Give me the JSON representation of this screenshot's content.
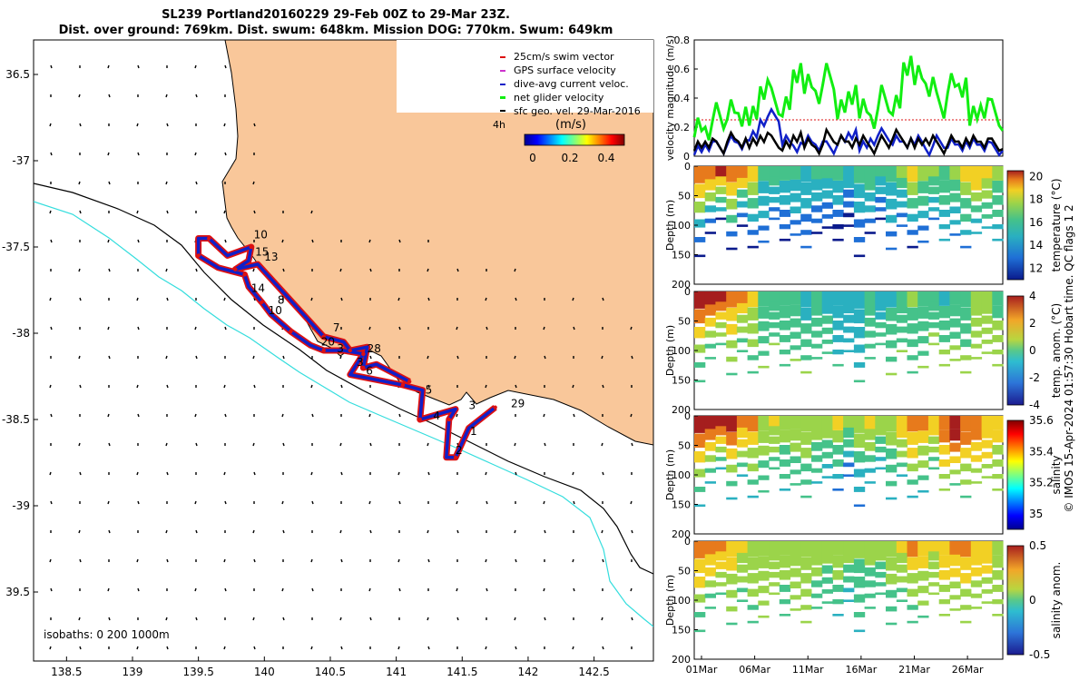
{
  "title_line1": "SL239 Portland20160229 29-Feb 00Z to 29-Mar 23Z.",
  "title_line2": "Dist. over ground: 769km. Dist. swum: 648km. Mission DOG: 770km. Swum: 649km",
  "colors": {
    "land": "#f9c79a",
    "track_red": "#dd1111",
    "track_blue": "#1020c8",
    "isobath_200": "#000000",
    "isobath_1000": "#33dddd",
    "net_velocity": "#11ee11",
    "dive_avg": "#1020c8",
    "sfc_geo": "#000000"
  },
  "map": {
    "legend": [
      {
        "label": "25cm/s swim vector",
        "color": "#dd1111"
      },
      {
        "label": "GPS surface velocity",
        "color": "#cc33cc"
      },
      {
        "label": "dive-avg current veloc.",
        "color": "#1020c8"
      },
      {
        "label": "net glider velocity",
        "color": "#11ee11"
      },
      {
        "label": "sfc geo. vel. 29-Mar-2016",
        "color": "#000000"
      }
    ],
    "colorbar_label": "(m/s)",
    "colorbar_ticks": [
      "0",
      "0.2",
      "0.4"
    ],
    "marker_4h": "4h",
    "isobaths_label": "isobaths: 0   200  1000m",
    "x_ticks": [
      "138.5",
      "139",
      "139.5",
      "140",
      "140.5",
      "141",
      "141.5",
      "142",
      "142.5"
    ],
    "y_ticks": [
      "36.5",
      "-37",
      "-37.5",
      "-38",
      "-38.5",
      "-39",
      "39.5"
    ],
    "day_labels": [
      {
        "t": "10",
        "lon": 139.92,
        "lat": -37.45
      },
      {
        "t": "15",
        "lon": 139.93,
        "lat": -37.55
      },
      {
        "t": "13",
        "lon": 140.0,
        "lat": -37.58
      },
      {
        "t": "14",
        "lon": 139.9,
        "lat": -37.76
      },
      {
        "t": "8",
        "lon": 140.1,
        "lat": -37.83
      },
      {
        "t": "10",
        "lon": 140.03,
        "lat": -37.89
      },
      {
        "t": "7",
        "lon": 140.52,
        "lat": -37.99
      },
      {
        "t": "20",
        "lon": 140.43,
        "lat": -38.07
      },
      {
        "t": "3",
        "lon": 140.55,
        "lat": -38.11
      },
      {
        "t": "28",
        "lon": 140.78,
        "lat": -38.11
      },
      {
        "t": "3",
        "lon": 140.7,
        "lat": -38.19
      },
      {
        "t": "6",
        "lon": 140.77,
        "lat": -38.24
      },
      {
        "t": "5",
        "lon": 141.22,
        "lat": -38.35
      },
      {
        "t": "3",
        "lon": 141.55,
        "lat": -38.44
      },
      {
        "t": "29",
        "lon": 141.87,
        "lat": -38.43
      },
      {
        "t": "4",
        "lon": 141.28,
        "lat": -38.5
      },
      {
        "t": "1",
        "lon": 141.56,
        "lat": -38.59
      },
      {
        "t": "2",
        "lon": 141.45,
        "lat": -38.7
      }
    ]
  },
  "panels": {
    "velocity": {
      "ylabel": "velocity magnitude (m/s)",
      "yticks": [
        "0",
        "0.2",
        "0.4",
        "0.6",
        "0.8"
      ]
    },
    "temperature": {
      "ylabel": "Depth (m)",
      "cblabel": "temperature (°C)",
      "cbticks": [
        "20",
        "18",
        "16",
        "14",
        "12"
      ]
    },
    "temp_anom": {
      "ylabel": "Depth (m)",
      "cblabel": "temp. anom. (°C)",
      "cbticks": [
        "4",
        "2",
        "0",
        "-2",
        "-4"
      ]
    },
    "salinity": {
      "ylabel": "Depth (m)",
      "cblabel": "salinity",
      "cbticks": [
        "35.6",
        "35.4",
        "35.2",
        "35"
      ]
    },
    "sal_anom": {
      "ylabel": "Depth (m)",
      "cblabel": "salinity anom.",
      "cbticks": [
        "0.5",
        "0",
        "-0.5"
      ]
    },
    "depth_ticks": [
      "0",
      "50",
      "100",
      "150",
      "200"
    ],
    "x_ticks": [
      "01Mar",
      "06Mar",
      "11Mar",
      "16Mar",
      "21Mar",
      "26Mar"
    ]
  },
  "side_caption": "© IMOS 15-Apr-2024 01:57:30 Hobart time. QC flags 1  2",
  "chart_data": [
    {
      "type": "scatter",
      "title": "SL239 Portland20160229 29-Feb 00Z to 29-Mar 23Z.",
      "xlabel": "",
      "ylabel": "",
      "xlim": [
        138.25,
        142.95
      ],
      "ylim": [
        -39.9,
        -36.3
      ],
      "track": [
        [
          141.75,
          -38.43
        ],
        [
          141.55,
          -38.55
        ],
        [
          141.45,
          -38.72
        ],
        [
          141.38,
          -38.72
        ],
        [
          141.4,
          -38.5
        ],
        [
          141.45,
          -38.44
        ],
        [
          141.18,
          -38.5
        ],
        [
          141.2,
          -38.33
        ],
        [
          141.05,
          -38.3
        ],
        [
          140.65,
          -38.24
        ],
        [
          140.75,
          -38.12
        ],
        [
          140.6,
          -38.1
        ],
        [
          140.45,
          -38.1
        ],
        [
          140.35,
          -38.07
        ],
        [
          140.2,
          -37.99
        ],
        [
          140.05,
          -37.89
        ],
        [
          139.98,
          -37.82
        ],
        [
          139.88,
          -37.73
        ],
        [
          139.85,
          -37.66
        ],
        [
          139.65,
          -37.62
        ],
        [
          139.5,
          -37.55
        ],
        [
          139.5,
          -37.45
        ],
        [
          139.58,
          -37.45
        ],
        [
          139.72,
          -37.55
        ],
        [
          139.9,
          -37.5
        ],
        [
          139.88,
          -37.58
        ],
        [
          139.78,
          -37.63
        ],
        [
          139.95,
          -37.6
        ],
        [
          140.45,
          -38.02
        ],
        [
          140.6,
          -38.05
        ],
        [
          140.65,
          -38.1
        ],
        [
          140.78,
          -38.08
        ],
        [
          140.75,
          -38.2
        ],
        [
          140.85,
          -38.18
        ],
        [
          141.1,
          -38.28
        ]
      ]
    },
    {
      "type": "line",
      "title": "",
      "xlabel": "",
      "ylabel": "velocity magnitude (m/s)",
      "ylim": [
        0,
        0.8
      ],
      "x": [
        1,
        2,
        3,
        4,
        5,
        6,
        7,
        8,
        9,
        10,
        11,
        12,
        13,
        14,
        15,
        16,
        17,
        18,
        19,
        20,
        21,
        22,
        23,
        24,
        25,
        26,
        27,
        28,
        29
      ],
      "series": [
        {
          "name": "net glider velocity",
          "values": [
            0.22,
            0.2,
            0.28,
            0.3,
            0.25,
            0.3,
            0.48,
            0.38,
            0.32,
            0.55,
            0.52,
            0.45,
            0.55,
            0.3,
            0.4,
            0.35,
            0.28,
            0.4,
            0.33,
            0.6,
            0.58,
            0.5,
            0.35,
            0.48,
            0.45,
            0.3,
            0.35,
            0.3,
            0.22
          ]
        },
        {
          "name": "dive-avg current veloc.",
          "values": [
            0.05,
            0.08,
            0.06,
            0.1,
            0.07,
            0.15,
            0.25,
            0.28,
            0.1,
            0.05,
            0.12,
            0.08,
            0.06,
            0.1,
            0.14,
            0.08,
            0.12,
            0.15,
            0.1,
            0.08,
            0.12,
            0.05,
            0.1,
            0.08,
            0.06,
            0.1,
            0.08,
            0.05,
            0.06
          ]
        },
        {
          "name": "sfc geo. vel. 29-Mar-2016",
          "values": [
            0.08,
            0.1,
            0.06,
            0.12,
            0.08,
            0.1,
            0.14,
            0.1,
            0.06,
            0.12,
            0.1,
            0.06,
            0.14,
            0.1,
            0.08,
            0.12,
            0.06,
            0.1,
            0.14,
            0.08,
            0.1,
            0.12,
            0.06,
            0.1,
            0.08,
            0.12,
            0.1,
            0.08,
            0.07
          ]
        }
      ]
    },
    {
      "type": "heatmap",
      "ylabel": "Depth (m)",
      "colorbar": "temperature (°C)",
      "ylim": [
        200,
        0
      ],
      "crange": [
        11,
        20.5
      ],
      "maxdepth": [
        150,
        150,
        150,
        150,
        150,
        150,
        150,
        150,
        150,
        150,
        150,
        150,
        150,
        150,
        150,
        150,
        150,
        150,
        150,
        150,
        150,
        150,
        150,
        150,
        150,
        150,
        150,
        150,
        150
      ],
      "surface": [
        19,
        19,
        19.5,
        19,
        18.5,
        17,
        15,
        15.5,
        15,
        15,
        14.5,
        15,
        15.2,
        14.8,
        14.5,
        15,
        15.5,
        14.8,
        15,
        16,
        17,
        16.5,
        16,
        15.5,
        16,
        17,
        18,
        17,
        16
      ],
      "bottom": [
        11.5,
        11.5,
        12,
        11.8,
        11.5,
        12,
        12.5,
        12.2,
        12,
        12.5,
        12.2,
        12,
        11.8,
        11.5,
        11,
        11.5,
        12,
        12,
        12.5,
        12.3,
        12,
        12.5,
        13,
        13.5,
        13.2,
        13,
        13.5,
        14,
        14
      ]
    },
    {
      "type": "heatmap",
      "ylabel": "Depth (m)",
      "colorbar": "temp. anom. (°C)",
      "ylim": [
        200,
        0
      ],
      "crange": [
        -4,
        4
      ],
      "surface": [
        3,
        3,
        3,
        2.5,
        2,
        1,
        -1,
        -0.5,
        -1,
        -1,
        -1.5,
        -1,
        -1.2,
        -1.5,
        -2,
        -1.5,
        -1,
        -1.5,
        -1.2,
        -0.5,
        0,
        -0.5,
        -1,
        -1.2,
        -1,
        -0.5,
        0.5,
        0,
        -0.5
      ],
      "bottom": [
        -1,
        -1,
        -0.5,
        -0.5,
        -1,
        -0.5,
        0,
        0,
        -0.5,
        0,
        0,
        -0.3,
        -0.5,
        -1,
        -1.5,
        -1,
        -0.5,
        -0.5,
        0,
        0,
        -0.3,
        0,
        0.5,
        0.5,
        0.5,
        0.3,
        0.5,
        0.8,
        0.8
      ]
    },
    {
      "type": "heatmap",
      "ylabel": "Depth (m)",
      "colorbar": "salinity",
      "ylim": [
        200,
        0
      ],
      "crange": [
        34.9,
        35.6
      ],
      "surface": [
        35.6,
        35.6,
        35.55,
        35.6,
        35.5,
        35.45,
        35.3,
        35.35,
        35.3,
        35.3,
        35.3,
        35.3,
        35.3,
        35.35,
        35.3,
        35.3,
        35.35,
        35.3,
        35.3,
        35.4,
        35.5,
        35.45,
        35.4,
        35.5,
        35.6,
        35.5,
        35.5,
        35.4,
        35.35
      ],
      "bottom": [
        35.1,
        35.1,
        35.15,
        35.15,
        35.1,
        35.15,
        35.2,
        35.2,
        35.15,
        35.2,
        35.2,
        35.15,
        35.1,
        35.05,
        35,
        35.05,
        35.1,
        35.1,
        35.15,
        35.15,
        35.1,
        35.15,
        35.2,
        35.25,
        35.2,
        35.2,
        35.25,
        35.3,
        35.3
      ]
    },
    {
      "type": "heatmap",
      "ylabel": "Depth (m)",
      "colorbar": "salinity anom.",
      "ylim": [
        200,
        0
      ],
      "crange": [
        -0.5,
        0.5
      ],
      "surface": [
        0.3,
        0.3,
        0.25,
        0.2,
        0.15,
        0.1,
        0.05,
        0.1,
        0.05,
        0.05,
        0.05,
        0.05,
        0.05,
        0.1,
        0.05,
        0,
        0.05,
        0.05,
        0.05,
        0.15,
        0.25,
        0.2,
        0.15,
        0.2,
        0.3,
        0.25,
        0.2,
        0.15,
        0.1
      ],
      "bottom": [
        -0.1,
        -0.1,
        -0.05,
        -0.05,
        -0.1,
        -0.05,
        0,
        0,
        -0.05,
        0,
        0,
        -0.05,
        -0.1,
        -0.15,
        -0.2,
        -0.15,
        -0.1,
        -0.1,
        -0.05,
        -0.05,
        -0.1,
        -0.05,
        0,
        0.05,
        0,
        0,
        0.05,
        0.1,
        0.1
      ]
    }
  ]
}
